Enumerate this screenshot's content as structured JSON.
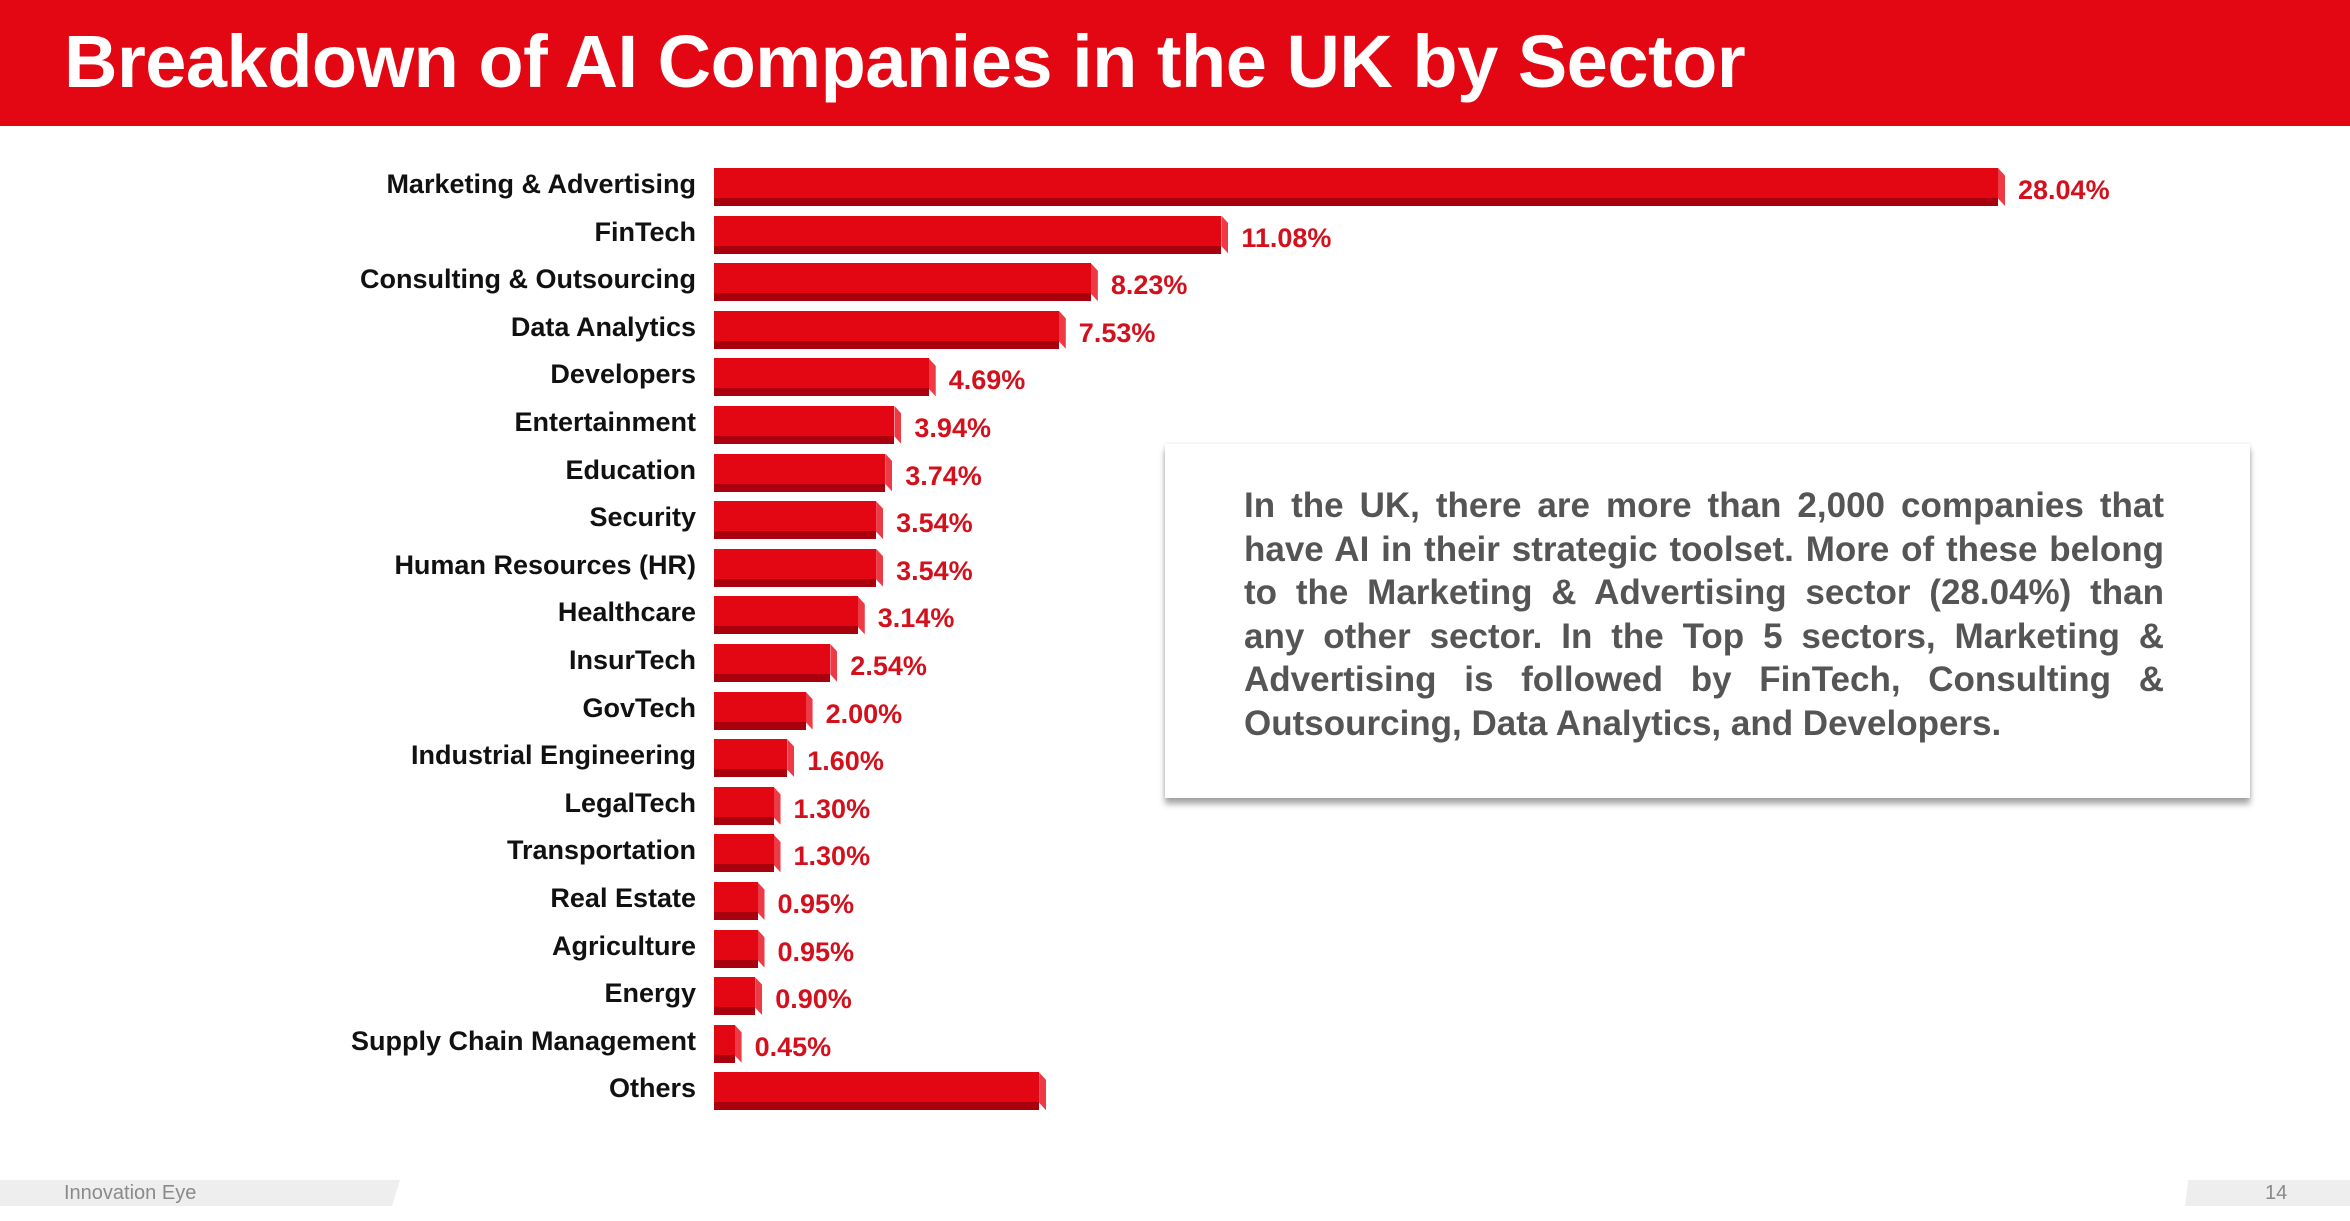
{
  "header": {
    "title": "Breakdown of AI Companies in the UK by Sector"
  },
  "chart_data": {
    "type": "bar",
    "orientation": "horizontal",
    "title": "Breakdown of AI Companies in the UK by Sector",
    "xlabel": "",
    "ylabel": "",
    "categories": [
      "Marketing & Advertising",
      "FinTech",
      "Consulting & Outsourcing",
      "Data Analytics",
      "Developers",
      "Entertainment",
      "Education",
      "Security",
      "Human Resources (HR)",
      "Healthcare",
      "InsurTech",
      "GovTech",
      "Industrial Engineering",
      "LegalTech",
      "Transportation",
      "Real Estate",
      "Agriculture",
      "Energy",
      "Supply Chain Management",
      "Others"
    ],
    "values": [
      28.04,
      11.08,
      8.23,
      7.53,
      4.69,
      3.94,
      3.74,
      3.54,
      3.54,
      3.14,
      2.54,
      2.0,
      1.6,
      1.3,
      1.3,
      0.95,
      0.95,
      0.9,
      0.45,
      7.1
    ],
    "value_labels": [
      "28.04%",
      "11.08%",
      "8.23%",
      "7.53%",
      "4.69%",
      "3.94%",
      "3.74%",
      "3.54%",
      "3.54%",
      "3.14%",
      "2.54%",
      "2.00%",
      "1.60%",
      "1.30%",
      "1.30%",
      "0.95%",
      "0.95%",
      "0.90%",
      "0.45%",
      ""
    ],
    "grid": false,
    "legend": null,
    "bar_color": "#e30613",
    "label_color": "#d3101c"
  },
  "rows": [
    {
      "label": "Marketing & Advertising",
      "value": "28.04%"
    },
    {
      "label": "FinTech",
      "value": "11.08%"
    },
    {
      "label": "Consulting & Outsourcing",
      "value": "8.23%"
    },
    {
      "label": "Data Analytics",
      "value": "7.53%"
    },
    {
      "label": "Developers",
      "value": "4.69%"
    },
    {
      "label": "Entertainment",
      "value": "3.94%"
    },
    {
      "label": "Education",
      "value": "3.74%"
    },
    {
      "label": "Security",
      "value": "3.54%"
    },
    {
      "label": "Human Resources (HR)",
      "value": "3.54%"
    },
    {
      "label": "Healthcare",
      "value": "3.14%"
    },
    {
      "label": "InsurTech",
      "value": "2.54%"
    },
    {
      "label": "GovTech",
      "value": "2.00%"
    },
    {
      "label": "Industrial Engineering",
      "value": "1.60%"
    },
    {
      "label": "LegalTech",
      "value": "1.30%"
    },
    {
      "label": "Transportation",
      "value": "1.30%"
    },
    {
      "label": "Real Estate",
      "value": "0.95%"
    },
    {
      "label": "Agriculture",
      "value": "0.95%"
    },
    {
      "label": "Energy",
      "value": "0.90%"
    },
    {
      "label": "Supply Chain Management",
      "value": "0.45%"
    },
    {
      "label": "Others",
      "value": ""
    }
  ],
  "callout": {
    "text": "In the UK, there are more than 2,000 companies that have AI in their strategic toolset. More of these belong to the Marketing & Advertising sector (28.04%) than any other sector. In the Top 5 sectors, Marketing & Advertising is followed by FinTech, Consulting & Outsourcing, Data Analytics, and Developers."
  },
  "footer": {
    "brand": "Innovation Eye",
    "page_number": "14"
  },
  "colors": {
    "brand_red": "#e30613",
    "bar_shadow": "#a8000c",
    "text_gray": "#555555"
  }
}
